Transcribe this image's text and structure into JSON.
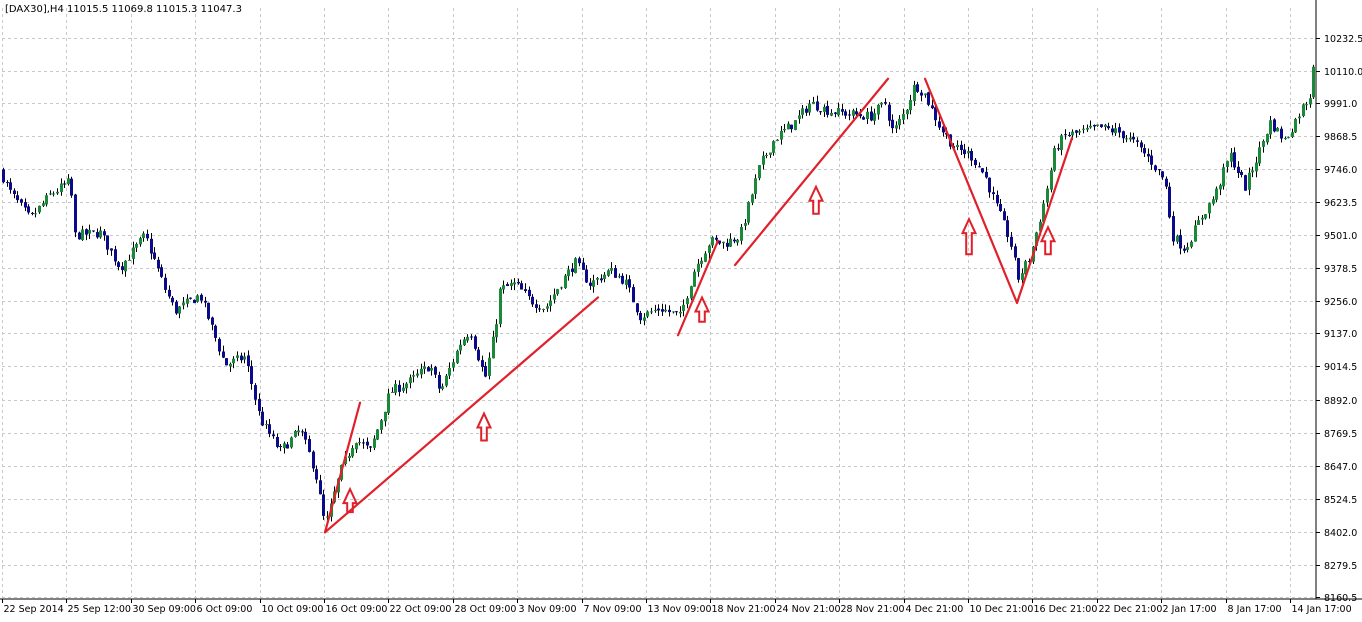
{
  "chart_data": {
    "type": "candlestick",
    "symbol_title": "[DAX30],H4  11015.5 11069.8 11015.3 11047.3",
    "y_ticks": [
      "10232.5",
      "10110.0",
      "9991.0",
      "9868.5",
      "9746.0",
      "9623.5",
      "9501.0",
      "9378.5",
      "9256.0",
      "9137.0",
      "9014.5",
      "8892.0",
      "8769.5",
      "8647.0",
      "8524.5",
      "8402.0",
      "8279.5",
      "8160.5"
    ],
    "x_ticks": [
      "22 Sep 2014",
      "25 Sep 12:00",
      "30 Sep 09:00",
      "6 Oct 09:00",
      "10 Oct 09:00",
      "16 Oct 09:00",
      "22 Oct 09:00",
      "28 Oct 09:00",
      "3 Nov 09:00",
      "7 Nov 09:00",
      "13 Nov 09:00",
      "18 Nov 21:00",
      "24 Nov 21:00",
      "28 Nov 21:00",
      "4 Dec 21:00",
      "10 Dec 21:00",
      "16 Dec 21:00",
      "22 Dec 21:00",
      "2 Jan 17:00",
      "8 Jan 17:00",
      "14 Jan 17:00"
    ],
    "ylim": [
      8160.5,
      10305
    ],
    "grid": true,
    "colors": {
      "up": "#1a8a3a",
      "down": "#0a0a8a",
      "wick": "#000000",
      "annotation": "#e0202a",
      "grid": "#c8c8c8"
    },
    "path": [
      [
        0,
        9740
      ],
      [
        10,
        9660
      ],
      [
        30,
        9560
      ],
      [
        50,
        9650
      ],
      [
        70,
        9700
      ],
      [
        75,
        9500
      ],
      [
        100,
        9510
      ],
      [
        120,
        9380
      ],
      [
        145,
        9500
      ],
      [
        165,
        9300
      ],
      [
        175,
        9220
      ],
      [
        200,
        9280
      ],
      [
        225,
        9020
      ],
      [
        245,
        9050
      ],
      [
        260,
        8820
      ],
      [
        280,
        8700
      ],
      [
        300,
        8780
      ],
      [
        315,
        8630
      ],
      [
        325,
        8420
      ],
      [
        340,
        8620
      ],
      [
        355,
        8750
      ],
      [
        370,
        8700
      ],
      [
        390,
        8920
      ],
      [
        410,
        8960
      ],
      [
        430,
        9020
      ],
      [
        440,
        8920
      ],
      [
        460,
        9100
      ],
      [
        470,
        9150
      ],
      [
        485,
        8970
      ],
      [
        495,
        9150
      ],
      [
        500,
        9300
      ],
      [
        515,
        9320
      ],
      [
        530,
        9260
      ],
      [
        545,
        9230
      ],
      [
        560,
        9320
      ],
      [
        575,
        9400
      ],
      [
        590,
        9320
      ],
      [
        610,
        9370
      ],
      [
        625,
        9330
      ],
      [
        640,
        9200
      ],
      [
        660,
        9230
      ],
      [
        680,
        9200
      ],
      [
        695,
        9380
      ],
      [
        710,
        9480
      ],
      [
        725,
        9470
      ],
      [
        740,
        9500
      ],
      [
        760,
        9760
      ],
      [
        775,
        9860
      ],
      [
        795,
        9920
      ],
      [
        810,
        9990
      ],
      [
        830,
        9960
      ],
      [
        850,
        9950
      ],
      [
        870,
        9940
      ],
      [
        885,
        9990
      ],
      [
        893,
        9880
      ],
      [
        905,
        9960
      ],
      [
        915,
        10060
      ],
      [
        925,
        10020
      ],
      [
        940,
        9900
      ],
      [
        955,
        9820
      ],
      [
        970,
        9800
      ],
      [
        985,
        9720
      ],
      [
        995,
        9620
      ],
      [
        1010,
        9480
      ],
      [
        1018,
        9340
      ],
      [
        1030,
        9420
      ],
      [
        1045,
        9640
      ],
      [
        1055,
        9820
      ],
      [
        1065,
        9870
      ],
      [
        1080,
        9880
      ],
      [
        1100,
        9900
      ],
      [
        1120,
        9880
      ],
      [
        1135,
        9840
      ],
      [
        1150,
        9780
      ],
      [
        1165,
        9700
      ],
      [
        1172,
        9500
      ],
      [
        1185,
        9450
      ],
      [
        1200,
        9560
      ],
      [
        1215,
        9650
      ],
      [
        1230,
        9800
      ],
      [
        1245,
        9680
      ],
      [
        1260,
        9820
      ],
      [
        1270,
        9920
      ],
      [
        1285,
        9850
      ],
      [
        1300,
        9960
      ],
      [
        1310,
        10020
      ],
      [
        1316,
        10232.5
      ]
    ],
    "trend_lines": [
      [
        [
          325,
          8400
        ],
        [
          360,
          8880
        ]
      ],
      [
        [
          325,
          8400
        ],
        [
          598,
          9270
        ]
      ],
      [
        [
          678,
          9130
        ],
        [
          718,
          9480
        ]
      ],
      [
        [
          735,
          9390
        ],
        [
          888,
          10080
        ]
      ],
      [
        [
          925,
          10080
        ],
        [
          1017,
          9250
        ]
      ],
      [
        [
          1017,
          9250
        ],
        [
          1072,
          9860
        ]
      ]
    ],
    "arrows": [
      [
        350,
        8560,
        8475
      ],
      [
        484,
        8840,
        8740
      ],
      [
        702,
        9270,
        9180
      ],
      [
        816,
        9680,
        9580
      ],
      [
        969,
        9560,
        9430
      ],
      [
        1048,
        9530,
        9430
      ]
    ]
  }
}
